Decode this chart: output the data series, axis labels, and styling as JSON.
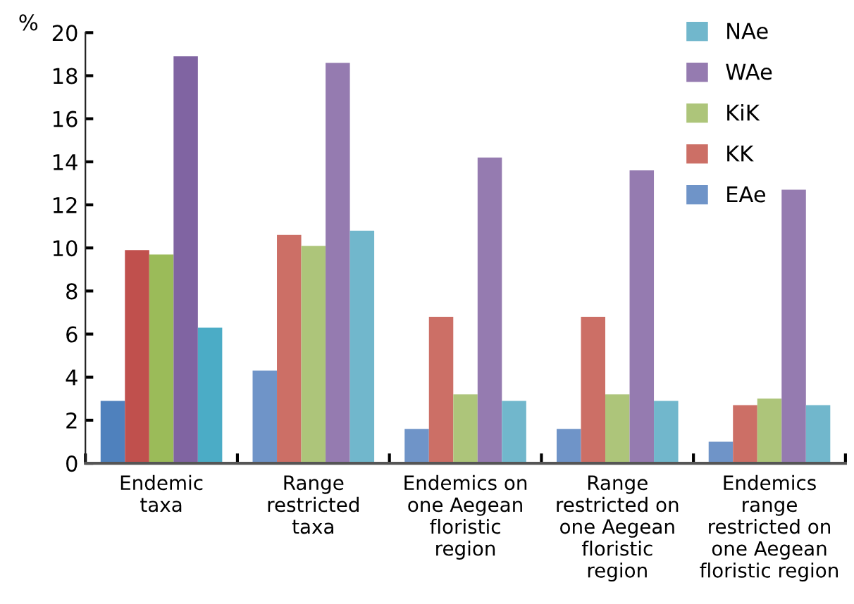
{
  "chart_data": {
    "type": "bar",
    "ylabel": "%",
    "categories": [
      "Endemic\ntaxa",
      "Range\nrestricted\ntaxa",
      "Endemics on\none Aegean\nfloristic\nregion",
      "Range\nrestricted on\none Aegean\nfloristic\nregion",
      "Endemics\nrange\nrestricted on\none Aegean\nfloristic region"
    ],
    "series": [
      {
        "name": "EAe",
        "color": "#6f94c8",
        "colors": [
          "#4f81bd",
          "#6f94c8",
          "#6f94c8",
          "#6f94c8",
          "#6f94c8"
        ],
        "values": [
          2.9,
          4.3,
          1.6,
          1.6,
          1.0
        ]
      },
      {
        "name": "KK",
        "color": "#cc6f66",
        "colors": [
          "#c0504d",
          "#cc6f66",
          "#cc6f66",
          "#cc6f66",
          "#cc6f66"
        ],
        "values": [
          9.9,
          10.6,
          6.8,
          6.8,
          2.7
        ]
      },
      {
        "name": "KiK",
        "color": "#adc57a",
        "colors": [
          "#9bbb59",
          "#adc57a",
          "#adc57a",
          "#adc57a",
          "#adc57a"
        ],
        "values": [
          9.7,
          10.1,
          3.2,
          3.2,
          3.0
        ]
      },
      {
        "name": "WAe",
        "color": "#957bb0",
        "colors": [
          "#8064a2",
          "#957bb0",
          "#957bb0",
          "#957bb0",
          "#957bb0"
        ],
        "values": [
          18.9,
          18.6,
          14.2,
          13.6,
          12.7
        ]
      },
      {
        "name": "NAe",
        "color": "#71b7cc",
        "colors": [
          "#4bacc6",
          "#71b7cc",
          "#71b7cc",
          "#71b7cc",
          "#71b7cc"
        ],
        "values": [
          6.3,
          10.8,
          2.9,
          2.9,
          2.7
        ]
      }
    ],
    "ylim": [
      0,
      20
    ],
    "yticks": [
      0,
      2,
      4,
      6,
      8,
      10,
      12,
      14,
      16,
      18,
      20
    ],
    "grid": false,
    "legend": "top right"
  }
}
